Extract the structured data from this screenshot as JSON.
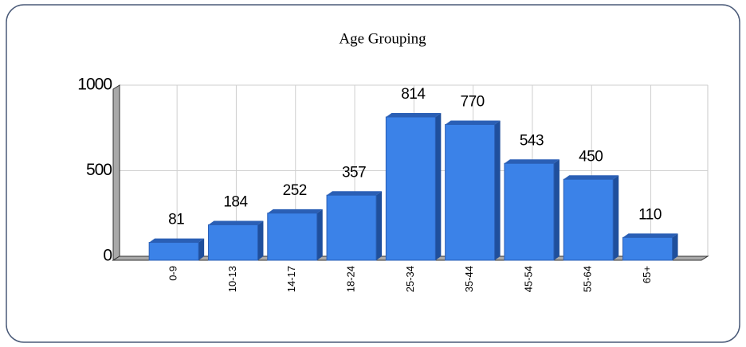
{
  "chart_data": {
    "type": "bar",
    "title": "Age Grouping",
    "categories": [
      "0-9",
      "10-13",
      "14-17",
      "18-24",
      "25-34",
      "35-44",
      "45-54",
      "55-64",
      "65+"
    ],
    "values": [
      81,
      184,
      252,
      357,
      814,
      770,
      543,
      450,
      110
    ],
    "color": "#3b82e8",
    "ylim": [
      0,
      1000
    ],
    "yticks": [
      0,
      500,
      1000
    ],
    "grid": true
  }
}
